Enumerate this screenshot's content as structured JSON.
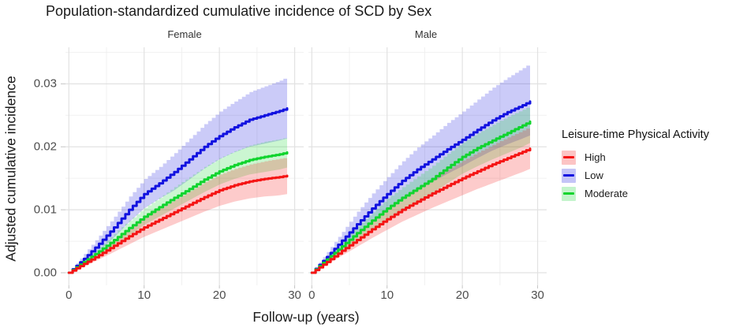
{
  "chart_data": {
    "type": "line",
    "title": "Population-standardized cumulative incidence of SCD by Sex",
    "xlabel": "Follow-up (years)",
    "ylabel": "Adjusted cumulative incidence",
    "x_ticks": [
      0,
      10,
      20,
      30
    ],
    "y_ticks": [
      0.0,
      0.01,
      0.02,
      0.03
    ],
    "xlim": [
      0,
      30
    ],
    "ylim": [
      0,
      0.035
    ],
    "grid": "on",
    "band_opacity": 0.22,
    "legend": {
      "title": "Leisure-time Physical Activity",
      "position": "right",
      "items": [
        {
          "label": "High",
          "color": "#f51414"
        },
        {
          "label": "Low",
          "color": "#1212e0"
        },
        {
          "label": "Moderate",
          "color": "#10d42e"
        }
      ]
    },
    "x": [
      0,
      2,
      4,
      6,
      8,
      10,
      12,
      14,
      16,
      18,
      20,
      22,
      24,
      26,
      28,
      29
    ],
    "panels": [
      {
        "label": "Female",
        "series": [
          {
            "name": "Low",
            "y": [
              0,
              0.0022,
              0.0046,
              0.0072,
              0.01,
              0.0125,
              0.0142,
              0.016,
              0.018,
              0.02,
              0.0217,
              0.0231,
              0.0243,
              0.025,
              0.0257,
              0.0261
            ],
            "lo": [
              0,
              0.0015,
              0.0034,
              0.0056,
              0.008,
              0.0102,
              0.0117,
              0.0131,
              0.0148,
              0.0165,
              0.018,
              0.0191,
              0.02,
              0.0205,
              0.021,
              0.0213
            ],
            "hi": [
              0,
              0.003,
              0.0059,
              0.0089,
              0.0121,
              0.0149,
              0.0168,
              0.019,
              0.0213,
              0.0236,
              0.0256,
              0.0272,
              0.0287,
              0.0296,
              0.0305,
              0.0311
            ]
          },
          {
            "name": "Moderate",
            "y": [
              0,
              0.0017,
              0.0034,
              0.0052,
              0.0071,
              0.0089,
              0.0104,
              0.0119,
              0.0133,
              0.0148,
              0.0161,
              0.0171,
              0.0179,
              0.0184,
              0.0188,
              0.0191
            ],
            "lo": [
              0,
              0.0013,
              0.0027,
              0.0043,
              0.0059,
              0.0076,
              0.0089,
              0.0102,
              0.0115,
              0.0128,
              0.014,
              0.0149,
              0.0156,
              0.016,
              0.0164,
              0.0167
            ],
            "hi": [
              0,
              0.0021,
              0.0041,
              0.0062,
              0.0083,
              0.0103,
              0.0119,
              0.0136,
              0.0152,
              0.0168,
              0.0182,
              0.0193,
              0.0202,
              0.0208,
              0.0212,
              0.0215
            ]
          },
          {
            "name": "High",
            "y": [
              0,
              0.0014,
              0.0028,
              0.0043,
              0.0058,
              0.0072,
              0.0084,
              0.0096,
              0.0108,
              0.012,
              0.0131,
              0.0139,
              0.0145,
              0.0149,
              0.0152,
              0.0154
            ],
            "lo": [
              0,
              0.001,
              0.0021,
              0.0033,
              0.0045,
              0.0057,
              0.0067,
              0.0077,
              0.0087,
              0.0097,
              0.0106,
              0.0113,
              0.0118,
              0.0121,
              0.0123,
              0.0125
            ],
            "hi": [
              0,
              0.0018,
              0.0035,
              0.0053,
              0.0071,
              0.0088,
              0.0102,
              0.0116,
              0.013,
              0.0144,
              0.0156,
              0.0165,
              0.0172,
              0.0177,
              0.0181,
              0.0183
            ]
          }
        ]
      },
      {
        "label": "Male",
        "series": [
          {
            "name": "Low",
            "y": [
              0,
              0.0025,
              0.0051,
              0.0077,
              0.0102,
              0.0125,
              0.0146,
              0.0164,
              0.018,
              0.0196,
              0.0211,
              0.0227,
              0.0242,
              0.0255,
              0.0266,
              0.0272
            ],
            "lo": [
              0,
              0.0018,
              0.0038,
              0.0059,
              0.008,
              0.0099,
              0.0116,
              0.0131,
              0.0144,
              0.0157,
              0.0169,
              0.0182,
              0.0194,
              0.0204,
              0.0213,
              0.0218
            ],
            "hi": [
              0,
              0.0033,
              0.0065,
              0.0097,
              0.0126,
              0.0152,
              0.0177,
              0.0199,
              0.0218,
              0.0238,
              0.0256,
              0.0275,
              0.0294,
              0.031,
              0.0325,
              0.0333
            ]
          },
          {
            "name": "Moderate",
            "y": [
              0,
              0.0021,
              0.0042,
              0.0063,
              0.0083,
              0.0102,
              0.0119,
              0.0134,
              0.0149,
              0.0167,
              0.0184,
              0.0198,
              0.021,
              0.0222,
              0.0234,
              0.024
            ],
            "lo": [
              0,
              0.0017,
              0.0034,
              0.0052,
              0.0069,
              0.0085,
              0.01,
              0.0113,
              0.0126,
              0.0142,
              0.0157,
              0.0169,
              0.018,
              0.019,
              0.02,
              0.0206
            ],
            "hi": [
              0,
              0.0025,
              0.005,
              0.0074,
              0.0096,
              0.0118,
              0.0136,
              0.0153,
              0.017,
              0.0189,
              0.0207,
              0.0222,
              0.0235,
              0.0248,
              0.0259,
              0.0265
            ]
          },
          {
            "name": "High",
            "y": [
              0,
              0.0017,
              0.0035,
              0.0052,
              0.0069,
              0.0085,
              0.01,
              0.0113,
              0.0126,
              0.0138,
              0.015,
              0.0161,
              0.0172,
              0.0182,
              0.0192,
              0.0197
            ],
            "lo": [
              0,
              0.0013,
              0.0027,
              0.0041,
              0.0055,
              0.0068,
              0.0081,
              0.0092,
              0.0103,
              0.0113,
              0.0123,
              0.0133,
              0.0142,
              0.0151,
              0.016,
              0.0165
            ],
            "hi": [
              0,
              0.0022,
              0.0044,
              0.0064,
              0.0084,
              0.0103,
              0.012,
              0.0135,
              0.015,
              0.0164,
              0.0178,
              0.0191,
              0.0203,
              0.0215,
              0.0226,
              0.0232
            ]
          }
        ]
      }
    ]
  }
}
